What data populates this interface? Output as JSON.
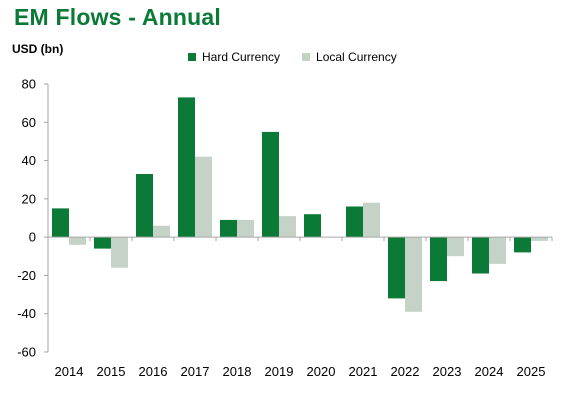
{
  "title": "EM Flows - Annual",
  "unit_label": "USD (bn)",
  "colors": {
    "hard": "#0a7a36",
    "local": "#c5d2c7"
  },
  "chart_data": {
    "type": "bar",
    "title": "EM Flows - Annual",
    "ylabel": "USD (bn)",
    "xlabel": "",
    "ylim": [
      -60,
      80
    ],
    "yticks": [
      80,
      60,
      40,
      20,
      0,
      -20,
      -40,
      -60
    ],
    "grid": false,
    "legend_position": "top",
    "categories": [
      "2014",
      "2015",
      "2016",
      "2017",
      "2018",
      "2019",
      "2020",
      "2021",
      "2022",
      "2023",
      "2024",
      "2025"
    ],
    "series": [
      {
        "name": "Hard Currency",
        "color": "#0a7a36",
        "values": [
          15,
          -6,
          33,
          73,
          9,
          55,
          12,
          16,
          -32,
          -23,
          -19,
          -8
        ]
      },
      {
        "name": "Local Currency",
        "color": "#c5d2c7",
        "values": [
          -4,
          -16,
          6,
          42,
          9,
          11,
          0,
          18,
          -39,
          -10,
          -14,
          -2
        ]
      }
    ]
  }
}
